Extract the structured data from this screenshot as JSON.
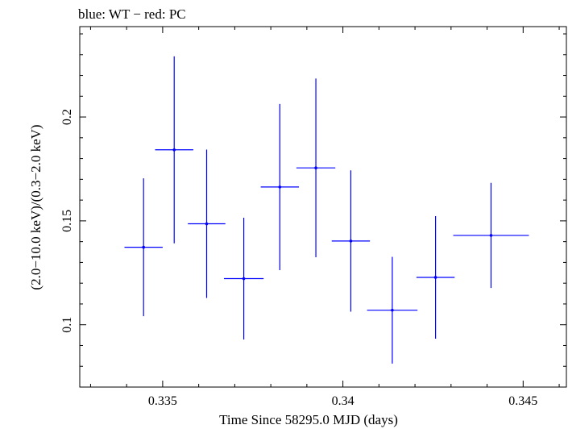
{
  "chart_data": {
    "type": "scatter",
    "title": "blue: WT − red: PC",
    "xlabel": "Time Since 58295.0 MJD (days)",
    "ylabel": "(2.0−10.0 keV)/(0.3−2.0 keV)",
    "xlim": [
      0.3327,
      0.3462
    ],
    "ylim": [
      0.07,
      0.2435
    ],
    "x_ticks": [
      0.335,
      0.34,
      0.345
    ],
    "x_tick_labels": [
      "0.335",
      "0.34",
      "0.345"
    ],
    "y_ticks": [
      0.1,
      0.15,
      0.2
    ],
    "y_tick_labels": [
      "0.1",
      "0.15",
      "0.2"
    ],
    "grid": false,
    "series": [
      {
        "color": "#0000ff",
        "points": [
          {
            "x": 0.33447,
            "y": 0.1373,
            "xerr": 0.00053,
            "yerr": 0.0332
          },
          {
            "x": 0.33532,
            "y": 0.1842,
            "xerr": 0.00053,
            "yerr": 0.045
          },
          {
            "x": 0.33622,
            "y": 0.1486,
            "xerr": 0.00052,
            "yerr": 0.0357
          },
          {
            "x": 0.33725,
            "y": 0.1222,
            "xerr": 0.00055,
            "yerr": 0.0293
          },
          {
            "x": 0.33825,
            "y": 0.1663,
            "xerr": 0.00053,
            "yerr": 0.04
          },
          {
            "x": 0.33925,
            "y": 0.1755,
            "xerr": 0.00054,
            "yerr": 0.043
          },
          {
            "x": 0.34022,
            "y": 0.1403,
            "xerr": 0.00053,
            "yerr": 0.034
          },
          {
            "x": 0.34137,
            "y": 0.107,
            "xerr": 0.0007,
            "yerr": 0.0257
          },
          {
            "x": 0.34257,
            "y": 0.1228,
            "xerr": 0.00053,
            "yerr": 0.0295
          },
          {
            "x": 0.34411,
            "y": 0.143,
            "xerr": 0.00105,
            "yerr": 0.0253
          }
        ]
      }
    ]
  }
}
